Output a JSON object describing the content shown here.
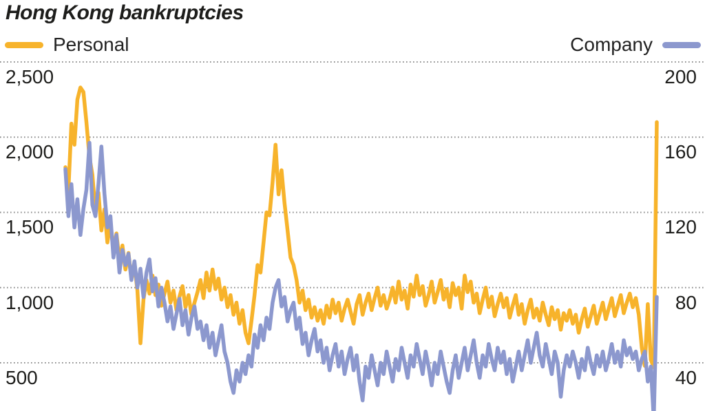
{
  "chart_data": {
    "type": "line",
    "title": "Hong Kong bankruptcies",
    "legend_position": "top",
    "grid": "horizontal-dotted",
    "grid_color": "#8c8c8c",
    "background_color": "#ffffff",
    "text_color": "#1d1d1b",
    "left_axis": {
      "side": "left",
      "range": [
        500,
        2500
      ],
      "ticks": [
        2500,
        2000,
        1500,
        1000,
        500
      ],
      "labels": [
        "2,500",
        "2,000",
        "1,500",
        "1,000",
        "500"
      ]
    },
    "right_axis": {
      "side": "right",
      "range": [
        40,
        200
      ],
      "ticks": [
        200,
        160,
        120,
        80,
        40
      ],
      "labels": [
        "200",
        "160",
        "120",
        "80",
        "40"
      ]
    },
    "series": [
      {
        "name": "Personal",
        "axis": "left",
        "color": "#F7B32B",
        "values": [
          1800,
          1650,
          2090,
          1950,
          2250,
          2330,
          2300,
          2100,
          1870,
          1750,
          1500,
          1630,
          1380,
          1520,
          1300,
          1430,
          1250,
          1360,
          1180,
          1280,
          1120,
          1230,
          1060,
          1150,
          980,
          630,
          920,
          1050,
          960,
          1080,
          950,
          1020,
          880,
          960,
          1040,
          900,
          980,
          850,
          940,
          1010,
          870,
          950,
          820,
          900,
          970,
          1050,
          930,
          1100,
          980,
          1120,
          990,
          1060,
          920,
          1000,
          870,
          950,
          820,
          900,
          760,
          850,
          700,
          630,
          780,
          950,
          1150,
          1100,
          1300,
          1500,
          1480,
          1700,
          1950,
          1620,
          1780,
          1560,
          1380,
          1200,
          1150,
          1050,
          900,
          980,
          850,
          920,
          800,
          870,
          780,
          850,
          760,
          880,
          800,
          920,
          830,
          900,
          780,
          860,
          920,
          840,
          760,
          890,
          950,
          820,
          900,
          960,
          850,
          930,
          1000,
          880,
          950,
          860,
          920,
          1000,
          900,
          1040,
          920,
          980,
          860,
          1020,
          940,
          1080,
          950,
          1010,
          880,
          950,
          1040,
          900,
          970,
          1050,
          920,
          990,
          870,
          1030,
          950,
          1000,
          860,
          1080,
          970,
          1040,
          900,
          960,
          830,
          920,
          1000,
          870,
          940,
          810,
          890,
          960,
          870,
          930,
          800,
          880,
          950,
          820,
          890,
          760,
          850,
          920,
          800,
          860,
          780,
          900,
          820,
          750,
          870,
          790,
          850,
          720,
          830,
          780,
          850,
          760,
          820,
          700,
          790,
          860,
          740,
          810,
          880,
          760,
          830,
          900,
          790,
          860,
          930,
          810,
          880,
          950,
          830,
          900,
          960,
          870,
          930,
          820,
          600,
          480,
          890,
          520,
          470,
          2100
        ]
      },
      {
        "name": "Company",
        "axis": "right",
        "color": "#8C98CE",
        "values": [
          143,
          118,
          135,
          112,
          127,
          108,
          122,
          132,
          157,
          124,
          118,
          135,
          155,
          130,
          112,
          118,
          96,
          108,
          88,
          100,
          92,
          98,
          84,
          94,
          80,
          90,
          75,
          88,
          95,
          78,
          85,
          70,
          80,
          72,
          62,
          70,
          58,
          66,
          74,
          60,
          68,
          55,
          64,
          70,
          58,
          62,
          52,
          60,
          48,
          56,
          44,
          52,
          60,
          46,
          40,
          30,
          24,
          36,
          30,
          40,
          34,
          44,
          38,
          55,
          48,
          60,
          52,
          64,
          58,
          72,
          80,
          84,
          70,
          75,
          62,
          68,
          72,
          58,
          64,
          50,
          56,
          44,
          52,
          58,
          46,
          52,
          40,
          48,
          36,
          44,
          50,
          38,
          46,
          34,
          42,
          48,
          36,
          44,
          30,
          20,
          38,
          32,
          44,
          36,
          28,
          40,
          34,
          46,
          38,
          30,
          42,
          36,
          48,
          40,
          32,
          44,
          38,
          50,
          42,
          34,
          46,
          38,
          28,
          40,
          34,
          46,
          38,
          30,
          24,
          36,
          44,
          32,
          40,
          48,
          36,
          44,
          52,
          40,
          32,
          44,
          38,
          50,
          42,
          36,
          48,
          40,
          46,
          34,
          42,
          30,
          38,
          46,
          36,
          44,
          52,
          40,
          48,
          56,
          44,
          38,
          50,
          42,
          34,
          46,
          40,
          22,
          36,
          44,
          38,
          46,
          40,
          32,
          42,
          36,
          48,
          40,
          34,
          44,
          38,
          46,
          36,
          42,
          50,
          40,
          46,
          38,
          52,
          44,
          48,
          42,
          46,
          36,
          42,
          46,
          30,
          38,
          10,
          75
        ]
      }
    ]
  }
}
